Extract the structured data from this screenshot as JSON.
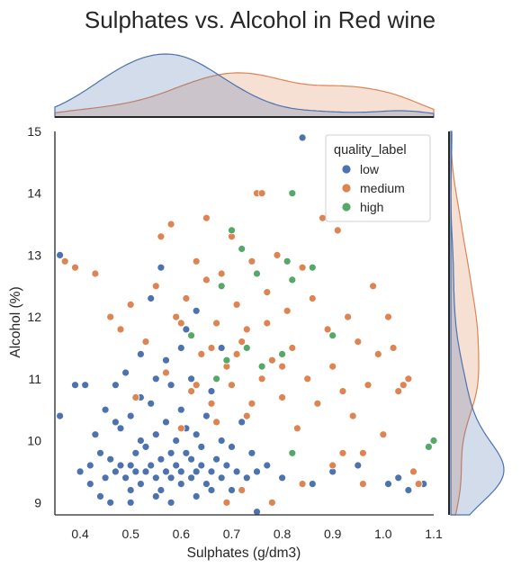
{
  "chart_data": {
    "type": "scatter",
    "title": "Sulphates vs. Alcohol in Red wine",
    "xlabel": "Sulphates (g/dm3)",
    "ylabel": "Alcohol (%)",
    "xlim": [
      0.35,
      1.1
    ],
    "ylim": [
      8.8,
      15.0
    ],
    "xticks": [
      "0.4",
      "0.5",
      "0.6",
      "0.7",
      "0.8",
      "0.9",
      "1.0",
      "1.1"
    ],
    "yticks": [
      "9",
      "10",
      "11",
      "12",
      "13",
      "14",
      "15"
    ],
    "grid": false,
    "legend": {
      "title": "quality_label",
      "placement": "top-right"
    },
    "marginals": {
      "x": "kde-density-top",
      "y": "kde-density-right"
    },
    "series": [
      {
        "name": "low",
        "color": "#4c72b0",
        "points": [
          [
            0.36,
            13.0
          ],
          [
            0.36,
            10.4
          ],
          [
            0.39,
            10.9
          ],
          [
            0.4,
            9.5
          ],
          [
            0.41,
            10.9
          ],
          [
            0.42,
            9.6
          ],
          [
            0.42,
            9.3
          ],
          [
            0.43,
            10.1
          ],
          [
            0.44,
            9.8
          ],
          [
            0.45,
            9.4
          ],
          [
            0.45,
            10.5
          ],
          [
            0.46,
            9.7
          ],
          [
            0.47,
            9.5
          ],
          [
            0.47,
            10.9
          ],
          [
            0.48,
            9.6
          ],
          [
            0.48,
            10.2
          ],
          [
            0.49,
            9.4
          ],
          [
            0.49,
            11.1
          ],
          [
            0.5,
            9.6
          ],
          [
            0.5,
            9.2
          ],
          [
            0.5,
            10.4
          ],
          [
            0.51,
            9.8
          ],
          [
            0.51,
            9.5
          ],
          [
            0.52,
            9.3
          ],
          [
            0.52,
            10.0
          ],
          [
            0.52,
            11.4
          ],
          [
            0.53,
            9.5
          ],
          [
            0.53,
            9.9
          ],
          [
            0.54,
            9.6
          ],
          [
            0.54,
            10.6
          ],
          [
            0.54,
            12.3
          ],
          [
            0.55,
            9.4
          ],
          [
            0.55,
            10.1
          ],
          [
            0.55,
            11.0
          ],
          [
            0.56,
            9.7
          ],
          [
            0.56,
            9.2
          ],
          [
            0.56,
            12.8
          ],
          [
            0.57,
            9.5
          ],
          [
            0.57,
            10.3
          ],
          [
            0.58,
            9.8
          ],
          [
            0.58,
            9.4
          ],
          [
            0.58,
            10.9
          ],
          [
            0.59,
            9.6
          ],
          [
            0.59,
            10.0
          ],
          [
            0.6,
            9.5
          ],
          [
            0.6,
            9.3
          ],
          [
            0.6,
            10.5
          ],
          [
            0.6,
            11.5
          ],
          [
            0.61,
            9.8
          ],
          [
            0.61,
            10.2
          ],
          [
            0.62,
            9.4
          ],
          [
            0.62,
            9.7
          ],
          [
            0.62,
            11.0
          ],
          [
            0.63,
            9.5
          ],
          [
            0.63,
            10.1
          ],
          [
            0.64,
            9.6
          ],
          [
            0.64,
            9.9
          ],
          [
            0.65,
            9.3
          ],
          [
            0.65,
            10.4
          ],
          [
            0.66,
            9.5
          ],
          [
            0.66,
            10.8
          ],
          [
            0.67,
            9.7
          ],
          [
            0.68,
            9.4
          ],
          [
            0.68,
            10.0
          ],
          [
            0.69,
            9.6
          ],
          [
            0.7,
            9.2
          ],
          [
            0.7,
            9.9
          ],
          [
            0.71,
            9.5
          ],
          [
            0.72,
            10.3
          ],
          [
            0.73,
            9.4
          ],
          [
            0.74,
            9.8
          ],
          [
            0.75,
            9.5
          ],
          [
            0.75,
            8.85
          ],
          [
            0.77,
            9.6
          ],
          [
            0.8,
            9.4
          ],
          [
            0.84,
            14.9
          ],
          [
            0.86,
            9.3
          ],
          [
            0.9,
            9.5
          ],
          [
            0.95,
            9.6
          ],
          [
            1.01,
            9.3
          ],
          [
            1.03,
            9.4
          ],
          [
            1.05,
            9.2
          ],
          [
            1.08,
            9.3
          ],
          [
            0.44,
            9.1
          ],
          [
            0.46,
            9.0
          ],
          [
            0.5,
            9.0
          ],
          [
            0.55,
            9.1
          ],
          [
            0.58,
            9.0
          ],
          [
            0.63,
            9.1
          ],
          [
            0.66,
            9.2
          ],
          [
            0.52,
            10.7
          ],
          [
            0.57,
            11.3
          ],
          [
            0.61,
            11.8
          ],
          [
            0.47,
            10.3
          ],
          [
            0.63,
            12.1
          ],
          [
            0.68,
            11.5
          ]
        ]
      },
      {
        "name": "medium",
        "color": "#dd8452",
        "points": [
          [
            0.37,
            12.9
          ],
          [
            0.39,
            12.8
          ],
          [
            0.43,
            12.7
          ],
          [
            0.46,
            12.0
          ],
          [
            0.48,
            11.8
          ],
          [
            0.5,
            12.2
          ],
          [
            0.51,
            10.7
          ],
          [
            0.53,
            11.6
          ],
          [
            0.55,
            12.5
          ],
          [
            0.56,
            13.3
          ],
          [
            0.57,
            11.1
          ],
          [
            0.58,
            13.5
          ],
          [
            0.59,
            12.0
          ],
          [
            0.6,
            11.9
          ],
          [
            0.61,
            12.3
          ],
          [
            0.62,
            10.8
          ],
          [
            0.63,
            12.9
          ],
          [
            0.64,
            11.4
          ],
          [
            0.65,
            13.6
          ],
          [
            0.65,
            12.6
          ],
          [
            0.66,
            10.6
          ],
          [
            0.67,
            11.9
          ],
          [
            0.68,
            12.7
          ],
          [
            0.69,
            11.2
          ],
          [
            0.7,
            13.3
          ],
          [
            0.7,
            10.9
          ],
          [
            0.71,
            12.2
          ],
          [
            0.72,
            11.6
          ],
          [
            0.73,
            10.4
          ],
          [
            0.74,
            12.9
          ],
          [
            0.75,
            14.0
          ],
          [
            0.76,
            14.0
          ],
          [
            0.76,
            11.0
          ],
          [
            0.77,
            12.4
          ],
          [
            0.78,
            11.3
          ],
          [
            0.79,
            13.0
          ],
          [
            0.8,
            10.7
          ],
          [
            0.81,
            12.1
          ],
          [
            0.82,
            11.5
          ],
          [
            0.83,
            10.2
          ],
          [
            0.84,
            12.8
          ],
          [
            0.85,
            11.0
          ],
          [
            0.86,
            12.3
          ],
          [
            0.87,
            10.6
          ],
          [
            0.88,
            13.6
          ],
          [
            0.89,
            11.8
          ],
          [
            0.9,
            11.2
          ],
          [
            0.91,
            13.4
          ],
          [
            0.92,
            10.8
          ],
          [
            0.93,
            12.0
          ],
          [
            0.94,
            10.4
          ],
          [
            0.95,
            11.6
          ],
          [
            0.96,
            9.8
          ],
          [
            0.97,
            10.9
          ],
          [
            0.98,
            12.5
          ],
          [
            0.99,
            11.4
          ],
          [
            1.0,
            10.1
          ],
          [
            1.01,
            12.0
          ],
          [
            1.02,
            11.5
          ],
          [
            1.03,
            10.8
          ],
          [
            1.04,
            10.9
          ],
          [
            1.05,
            11.0
          ],
          [
            1.06,
            9.5
          ],
          [
            1.07,
            9.3
          ],
          [
            0.69,
            9.0
          ],
          [
            0.72,
            9.2
          ],
          [
            0.78,
            9.0
          ],
          [
            0.84,
            9.3
          ],
          [
            0.9,
            9.6
          ],
          [
            0.92,
            9.8
          ],
          [
            0.96,
            9.3
          ],
          [
            0.66,
            11.5
          ],
          [
            0.71,
            11.4
          ],
          [
            0.73,
            11.8
          ],
          [
            0.77,
            11.9
          ],
          [
            0.8,
            11.2
          ],
          [
            0.6,
            10.2
          ],
          [
            0.63,
            10.9
          ],
          [
            0.67,
            10.3
          ],
          [
            0.74,
            10.6
          ]
        ]
      },
      {
        "name": "high",
        "color": "#55a868",
        "points": [
          [
            0.82,
            14.0
          ],
          [
            0.7,
            13.4
          ],
          [
            0.72,
            13.1
          ],
          [
            0.75,
            12.7
          ],
          [
            0.81,
            12.9
          ],
          [
            0.86,
            12.8
          ],
          [
            0.82,
            12.6
          ],
          [
            0.9,
            11.7
          ],
          [
            0.68,
            12.5
          ],
          [
            0.62,
            11.7
          ],
          [
            0.73,
            11.5
          ],
          [
            0.8,
            11.4
          ],
          [
            0.69,
            11.3
          ],
          [
            0.76,
            11.2
          ],
          [
            0.67,
            11.0
          ],
          [
            0.82,
            9.8
          ],
          [
            1.1,
            10.0
          ],
          [
            1.09,
            9.9
          ]
        ]
      }
    ]
  }
}
